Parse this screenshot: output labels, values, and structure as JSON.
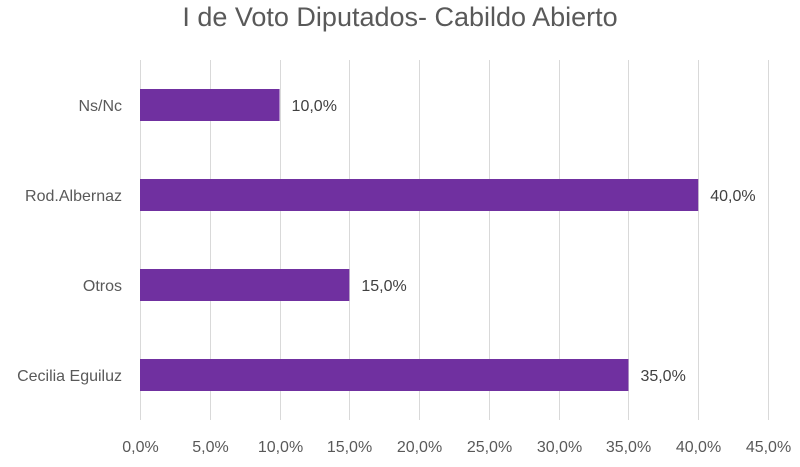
{
  "chart_data": {
    "type": "bar",
    "orientation": "horizontal",
    "title": "I de Voto Diputados- Cabildo Abierto",
    "categories": [
      "Ns/Nc",
      "Rod.Albernaz",
      "Otros",
      "Cecilia Eguiluz"
    ],
    "values": [
      10.0,
      40.0,
      15.0,
      35.0
    ],
    "value_labels": [
      "10,0%",
      "40,0%",
      "15,0%",
      "35,0%"
    ],
    "xlim": [
      0,
      45
    ],
    "x_ticks": [
      0,
      5,
      10,
      15,
      20,
      25,
      30,
      35,
      40,
      45
    ],
    "x_tick_labels": [
      "0,0%",
      "5,0%",
      "10,0%",
      "15,0%",
      "20,0%",
      "25,0%",
      "30,0%",
      "35,0%",
      "40,0%",
      "45,0%"
    ],
    "grid": true,
    "legend": "none",
    "bar_color": "#7030a0"
  }
}
